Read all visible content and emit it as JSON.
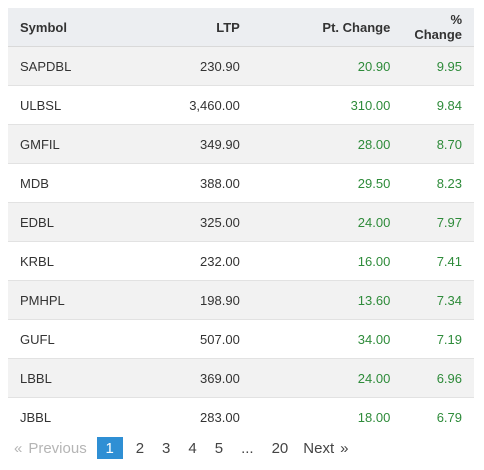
{
  "table": {
    "headers": {
      "symbol": "Symbol",
      "ltp": "LTP",
      "pt_change": "Pt. Change",
      "pct_change": "% Change"
    },
    "rows": [
      {
        "symbol": "SAPDBL",
        "ltp": "230.90",
        "pt_change": "20.90",
        "pct_change": "9.95"
      },
      {
        "symbol": "ULBSL",
        "ltp": "3,460.00",
        "pt_change": "310.00",
        "pct_change": "9.84"
      },
      {
        "symbol": "GMFIL",
        "ltp": "349.90",
        "pt_change": "28.00",
        "pct_change": "8.70"
      },
      {
        "symbol": "MDB",
        "ltp": "388.00",
        "pt_change": "29.50",
        "pct_change": "8.23"
      },
      {
        "symbol": "EDBL",
        "ltp": "325.00",
        "pt_change": "24.00",
        "pct_change": "7.97"
      },
      {
        "symbol": "KRBL",
        "ltp": "232.00",
        "pt_change": "16.00",
        "pct_change": "7.41"
      },
      {
        "symbol": "PMHPL",
        "ltp": "198.90",
        "pt_change": "13.60",
        "pct_change": "7.34"
      },
      {
        "symbol": "GUFL",
        "ltp": "507.00",
        "pt_change": "34.00",
        "pct_change": "7.19"
      },
      {
        "symbol": "LBBL",
        "ltp": "369.00",
        "pt_change": "24.00",
        "pct_change": "6.96"
      },
      {
        "symbol": "JBBL",
        "ltp": "283.00",
        "pt_change": "18.00",
        "pct_change": "6.79"
      }
    ]
  },
  "pagination": {
    "previous_arrow": "«",
    "previous_label": "Previous",
    "pages": [
      "1",
      "2",
      "3",
      "4",
      "5"
    ],
    "active_page": "1",
    "ellipsis": "...",
    "last_page": "20",
    "next_label": "Next",
    "next_arrow": "»"
  },
  "colors": {
    "positive": "#2e8b3a",
    "header_bg": "#eceef1",
    "stripe_bg": "#f2f2f2",
    "active_page_bg": "#2f8fd4"
  }
}
